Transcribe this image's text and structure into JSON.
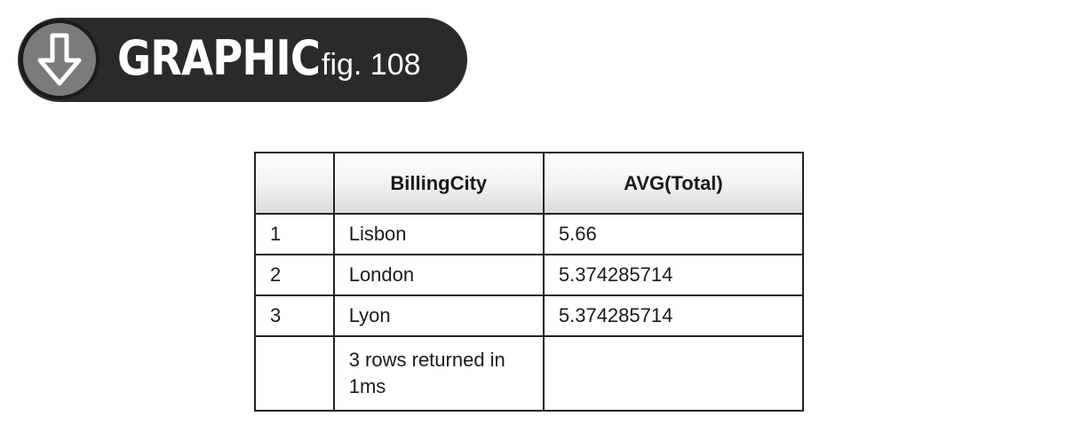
{
  "banner": {
    "icon": "arrow-down-circle-icon",
    "title": "GRAPHIC",
    "figure": "fig. 108"
  },
  "table": {
    "columns": [
      "",
      "BillingCity",
      "AVG(Total)"
    ],
    "rows": [
      {
        "index": "1",
        "city": "Lisbon",
        "avg": "5.66"
      },
      {
        "index": "2",
        "city": "London",
        "avg": "5.374285714"
      },
      {
        "index": "3",
        "city": "Lyon",
        "avg": "5.374285714"
      }
    ],
    "footer": {
      "index": "",
      "message": "3 rows returned in 1ms",
      "avg": ""
    }
  }
}
